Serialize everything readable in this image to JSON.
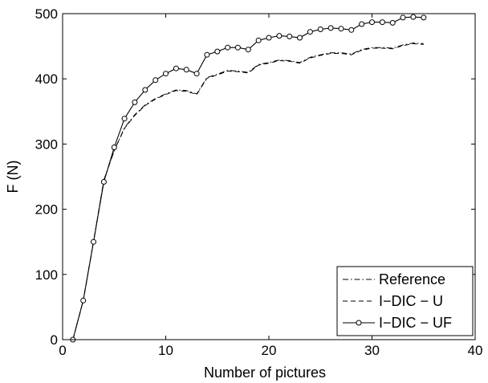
{
  "chart_data": {
    "type": "line",
    "title": "",
    "xlabel": "Number of pictures",
    "ylabel": "F (N)",
    "xlim": [
      0,
      40
    ],
    "ylim": [
      0,
      500
    ],
    "xticks": [
      "0",
      "10",
      "20",
      "30",
      "40"
    ],
    "yticks": [
      "0",
      "100",
      "200",
      "300",
      "400",
      "500"
    ],
    "grid": false,
    "legend_position": "bottom-right",
    "series": [
      {
        "name": "Reference",
        "style": "dash-dot",
        "color": "#000000",
        "x": [
          1,
          2,
          3,
          4,
          5,
          6,
          7,
          8,
          9,
          10,
          11,
          12,
          13,
          14,
          15,
          16,
          17,
          18,
          19,
          20,
          21,
          22,
          23,
          24,
          25,
          26,
          27,
          28,
          29,
          30,
          31,
          32,
          33,
          34,
          35
        ],
        "y": [
          0,
          60,
          150,
          245,
          290,
          325,
          345,
          360,
          370,
          377,
          383,
          382,
          377,
          402,
          407,
          413,
          412,
          410,
          422,
          425,
          429,
          428,
          425,
          433,
          437,
          440,
          440,
          438,
          445,
          448,
          448,
          447,
          452,
          455,
          454
        ]
      },
      {
        "name": "I−DIC − U",
        "style": "dashed",
        "color": "#000000",
        "x": [
          1,
          2,
          3,
          4,
          5,
          6,
          7,
          8,
          9,
          10,
          11,
          12,
          13,
          14,
          15,
          16,
          17,
          18,
          19,
          20,
          21,
          22,
          23,
          24,
          25,
          26,
          27,
          28,
          29,
          30,
          31,
          32,
          33,
          34,
          35
        ],
        "y": [
          0,
          60,
          150,
          244,
          290,
          324,
          344,
          359,
          369,
          376,
          382,
          381,
          376,
          401,
          406,
          412,
          411,
          409,
          421,
          424,
          428,
          427,
          424,
          432,
          436,
          439,
          439,
          437,
          444,
          447,
          447,
          446,
          451,
          454,
          453
        ]
      },
      {
        "name": "I−DIC − UF",
        "style": "solid-circle-marker",
        "color": "#000000",
        "x": [
          1,
          2,
          3,
          4,
          5,
          6,
          7,
          8,
          9,
          10,
          11,
          12,
          13,
          14,
          15,
          16,
          17,
          18,
          19,
          20,
          21,
          22,
          23,
          24,
          25,
          26,
          27,
          28,
          29,
          30,
          31,
          32,
          33,
          34,
          35
        ],
        "y": [
          0,
          60,
          150,
          242,
          295,
          339,
          364,
          383,
          398,
          408,
          416,
          414,
          408,
          437,
          442,
          448,
          448,
          445,
          459,
          463,
          466,
          465,
          463,
          472,
          476,
          478,
          477,
          475,
          484,
          487,
          487,
          486,
          494,
          495,
          494
        ]
      }
    ]
  }
}
